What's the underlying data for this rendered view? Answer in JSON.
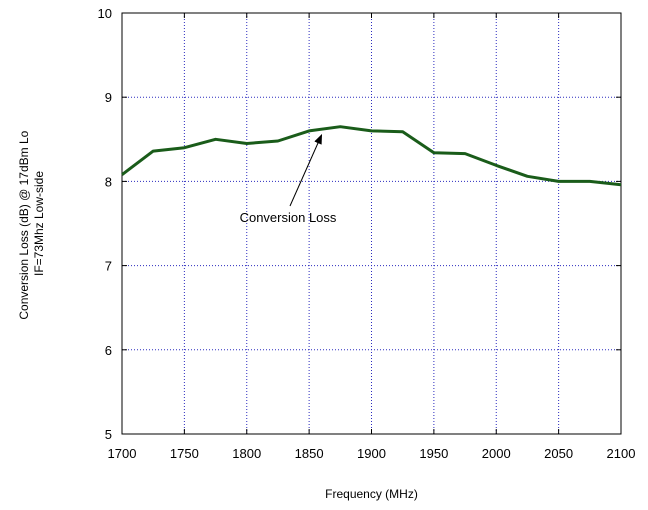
{
  "chart_data": {
    "type": "line",
    "title": "",
    "xlabel": "Frequency (MHz)",
    "ylabel_lines": [
      "Conversion Loss (dB) @ 17dBm Lo",
      "IF=73Mhz Low-side"
    ],
    "xlim": [
      1700,
      2100
    ],
    "ylim": [
      5,
      10
    ],
    "x_ticks": [
      1700,
      1750,
      1800,
      1850,
      1900,
      1950,
      2000,
      2050,
      2100
    ],
    "y_ticks": [
      5,
      6,
      7,
      8,
      9,
      10
    ],
    "grid": true,
    "series": [
      {
        "color": "#1a5c1a",
        "x": [
          1700,
          1725,
          1750,
          1775,
          1800,
          1825,
          1850,
          1875,
          1900,
          1925,
          1950,
          1975,
          2000,
          2025,
          2050,
          2075,
          2100
        ],
        "y": [
          8.08,
          8.36,
          8.4,
          8.5,
          8.45,
          8.48,
          8.6,
          8.65,
          8.6,
          8.59,
          8.34,
          8.33,
          8.19,
          8.06,
          8.0,
          8.0,
          7.96
        ]
      }
    ],
    "annotations": [
      {
        "text": "Conversion Loss",
        "arrow_to": {
          "x": 1860,
          "y": 8.6
        }
      }
    ]
  },
  "colors": {
    "grid": "#2b2bbf",
    "axis": "#000000",
    "line": "#1a5c1a"
  }
}
